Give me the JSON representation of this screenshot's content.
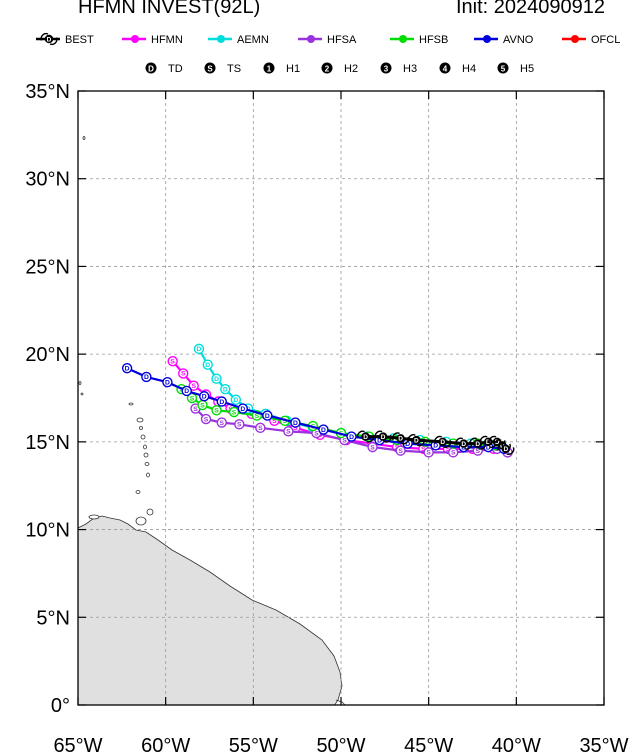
{
  "header": {
    "title": "HFMN INVEST(92L)",
    "init": "Init: 2024090912"
  },
  "legend": {
    "models": [
      {
        "name": "BEST",
        "color": "#000000"
      },
      {
        "name": "HFMN",
        "color": "#ff00ff"
      },
      {
        "name": "AEMN",
        "color": "#00dddd"
      },
      {
        "name": "HFSA",
        "color": "#9933dd"
      },
      {
        "name": "HFSB",
        "color": "#00dd00"
      },
      {
        "name": "AVNO",
        "color": "#0000dd"
      },
      {
        "name": "OFCL",
        "color": "#ff0000"
      }
    ],
    "intensity": [
      {
        "sym": "D",
        "label": "TD"
      },
      {
        "sym": "S",
        "label": "TS"
      },
      {
        "sym": "1",
        "label": "H1"
      },
      {
        "sym": "2",
        "label": "H2"
      },
      {
        "sym": "3",
        "label": "H3"
      },
      {
        "sym": "4",
        "label": "H4"
      },
      {
        "sym": "5",
        "label": "H5"
      }
    ]
  },
  "map": {
    "lon_range": [
      -65,
      -35
    ],
    "lat_range": [
      0,
      35
    ],
    "lon_ticks": [
      -65,
      -60,
      -55,
      -50,
      -45,
      -40,
      -35
    ],
    "lon_labels": [
      "65°W",
      "60°W",
      "55°W",
      "50°W",
      "45°W",
      "40°W",
      "35°W"
    ],
    "lat_ticks": [
      0,
      5,
      10,
      15,
      20,
      25,
      30,
      35
    ],
    "lat_labels": [
      "0°",
      "5°N",
      "10°N",
      "15°N",
      "20°N",
      "25°N",
      "30°N",
      "35°N"
    ],
    "grid": true,
    "land_color": "#e0e0e0"
  },
  "tracks": [
    {
      "model": "BEST",
      "color": "#000000",
      "symbol": "storm",
      "points": [
        [
          -48.6,
          15.3
        ],
        [
          -47.6,
          15.3
        ],
        [
          -46.6,
          15.2
        ],
        [
          -45.7,
          15.1
        ],
        [
          -44.2,
          15.0
        ],
        [
          -43.0,
          14.9
        ],
        [
          -42.2,
          14.9
        ],
        [
          -41.6,
          15.0
        ],
        [
          -41.1,
          15.0
        ],
        [
          -40.8,
          14.8
        ],
        [
          -40.6,
          14.6
        ]
      ]
    },
    {
      "model": "HFMN",
      "color": "#ff00ff",
      "symbol": "S",
      "points": [
        [
          -59.6,
          19.6
        ],
        [
          -59.0,
          18.9
        ],
        [
          -58.4,
          18.2
        ],
        [
          -57.7,
          17.7
        ],
        [
          -57.0,
          17.3
        ],
        [
          -56.3,
          16.9
        ],
        [
          -55.1,
          16.6
        ],
        [
          -53.8,
          16.2
        ],
        [
          -52.6,
          15.8
        ],
        [
          -51.2,
          15.4
        ],
        [
          -49.7,
          15.1
        ],
        [
          -48.2,
          14.9
        ],
        [
          -46.8,
          14.7
        ],
        [
          -45.3,
          14.6
        ],
        [
          -43.9,
          14.6
        ],
        [
          -42.5,
          14.6
        ],
        [
          -41.3,
          14.6
        ],
        [
          -40.5,
          14.4
        ]
      ]
    },
    {
      "model": "AEMN",
      "color": "#00dddd",
      "symbol": "D",
      "points": [
        [
          -58.1,
          20.3
        ],
        [
          -57.6,
          19.4
        ],
        [
          -57.1,
          18.6
        ],
        [
          -56.6,
          18.0
        ],
        [
          -56.0,
          17.4
        ],
        [
          -55.3,
          16.9
        ],
        [
          -54.3,
          16.6
        ],
        [
          -53.1,
          16.2
        ],
        [
          -51.6,
          15.8
        ],
        [
          -50.0,
          15.5
        ],
        [
          -48.5,
          15.3
        ],
        [
          -47.0,
          15.2
        ],
        [
          -45.5,
          15.1
        ],
        [
          -44.0,
          15.0
        ],
        [
          -42.6,
          14.9
        ],
        [
          -41.5,
          14.8
        ],
        [
          -40.8,
          14.7
        ]
      ]
    },
    {
      "model": "HFSA",
      "color": "#9933dd",
      "symbol": "S",
      "points": [
        [
          -58.3,
          16.9
        ],
        [
          -57.7,
          16.3
        ],
        [
          -56.8,
          16.1
        ],
        [
          -55.8,
          16.0
        ],
        [
          -54.6,
          15.8
        ],
        [
          -53.0,
          15.6
        ],
        [
          -51.4,
          15.5
        ],
        [
          -49.8,
          15.1
        ],
        [
          -48.2,
          14.7
        ],
        [
          -46.6,
          14.5
        ],
        [
          -45.0,
          14.4
        ],
        [
          -43.6,
          14.4
        ],
        [
          -42.2,
          14.5
        ],
        [
          -41.1,
          14.6
        ],
        [
          -40.5,
          14.4
        ]
      ]
    },
    {
      "model": "HFSB",
      "color": "#00dd00",
      "symbol": "S",
      "points": [
        [
          -59.1,
          18.0
        ],
        [
          -58.5,
          17.5
        ],
        [
          -57.9,
          17.1
        ],
        [
          -57.1,
          16.8
        ],
        [
          -56.1,
          16.7
        ],
        [
          -54.8,
          16.5
        ],
        [
          -53.2,
          16.2
        ],
        [
          -51.6,
          15.9
        ],
        [
          -50.0,
          15.5
        ],
        [
          -48.4,
          15.3
        ],
        [
          -46.8,
          15.1
        ],
        [
          -45.2,
          15.0
        ],
        [
          -43.6,
          14.9
        ],
        [
          -42.2,
          14.9
        ],
        [
          -41.2,
          14.8
        ]
      ]
    },
    {
      "model": "AVNO",
      "color": "#0000dd",
      "symbol": "D",
      "points": [
        [
          -62.2,
          19.2
        ],
        [
          -61.1,
          18.7
        ],
        [
          -59.9,
          18.4
        ],
        [
          -58.8,
          17.9
        ],
        [
          -57.8,
          17.6
        ],
        [
          -56.8,
          17.3
        ],
        [
          -55.6,
          16.9
        ],
        [
          -54.2,
          16.5
        ],
        [
          -52.6,
          16.1
        ],
        [
          -51.0,
          15.7
        ],
        [
          -49.4,
          15.3
        ],
        [
          -47.8,
          15.1
        ],
        [
          -46.2,
          14.9
        ],
        [
          -44.6,
          14.8
        ],
        [
          -43.0,
          14.7
        ],
        [
          -41.6,
          14.7
        ],
        [
          -40.7,
          14.6
        ]
      ]
    }
  ]
}
